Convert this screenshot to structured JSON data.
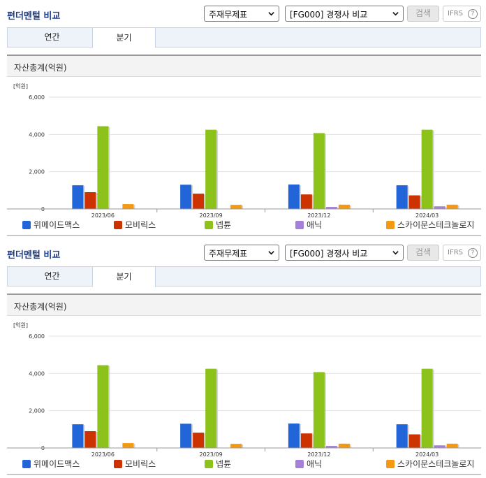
{
  "panels": [
    {
      "title": "펀더멘털 비교",
      "statement_select": "주재무제표",
      "compare_select": "[FG000] 경쟁사 비교",
      "search_label": "검색",
      "ifrs_label": "IFRS",
      "help_glyph": "?",
      "tabs": [
        {
          "label": "연간",
          "active": false
        },
        {
          "label": "분기",
          "active": true
        }
      ],
      "chart_heading": "자산총계(억원)",
      "unit_label": "[억원]"
    },
    {
      "title": "펀더멘털 비교",
      "statement_select": "주재무제표",
      "compare_select": "[FG000] 경쟁사 비교",
      "search_label": "검색",
      "ifrs_label": "IFRS",
      "help_glyph": "?",
      "tabs": [
        {
          "label": "연간",
          "active": false
        },
        {
          "label": "분기",
          "active": true
        }
      ],
      "chart_heading": "자산총계(억원)",
      "unit_label": "[억원]"
    }
  ],
  "chart_data": [
    {
      "type": "bar",
      "title": "자산총계(억원)",
      "ylabel": "[억원]",
      "ylim": [
        0,
        6000
      ],
      "yticks": [
        "0",
        "2,000",
        "4,000",
        "6,000"
      ],
      "categories": [
        "2023/06",
        "2023/09",
        "2023/12",
        "2024/03"
      ],
      "grid": true,
      "legend_position": "bottom",
      "series": [
        {
          "name": "위메이드맥스",
          "color": "#2165d8",
          "values": [
            1270,
            1300,
            1310,
            1270
          ]
        },
        {
          "name": "모비릭스",
          "color": "#cc3300",
          "values": [
            900,
            820,
            780,
            730
          ]
        },
        {
          "name": "넵튠",
          "color": "#8cc21a",
          "values": [
            4440,
            4250,
            4070,
            4250
          ]
        },
        {
          "name": "애닉",
          "color": "#a57fd8",
          "values": [
            0,
            0,
            110,
            140
          ]
        },
        {
          "name": "스카이문스테크놀로지",
          "color": "#f39a12",
          "values": [
            260,
            220,
            230,
            230
          ]
        }
      ]
    },
    {
      "type": "bar",
      "title": "자산총계(억원)",
      "ylabel": "[억원]",
      "ylim": [
        0,
        6000
      ],
      "yticks": [
        "0",
        "2,000",
        "4,000",
        "6,000"
      ],
      "categories": [
        "2023/06",
        "2023/09",
        "2023/12",
        "2024/03"
      ],
      "grid": true,
      "legend_position": "bottom",
      "series": [
        {
          "name": "위메이드맥스",
          "color": "#2165d8",
          "values": [
            1270,
            1300,
            1310,
            1270
          ]
        },
        {
          "name": "모비릭스",
          "color": "#cc3300",
          "values": [
            900,
            820,
            780,
            730
          ]
        },
        {
          "name": "넵튠",
          "color": "#8cc21a",
          "values": [
            4440,
            4250,
            4070,
            4250
          ]
        },
        {
          "name": "애닉",
          "color": "#a57fd8",
          "values": [
            0,
            0,
            110,
            140
          ]
        },
        {
          "name": "스카이문스테크놀로지",
          "color": "#f39a12",
          "values": [
            260,
            220,
            230,
            230
          ]
        }
      ]
    }
  ]
}
